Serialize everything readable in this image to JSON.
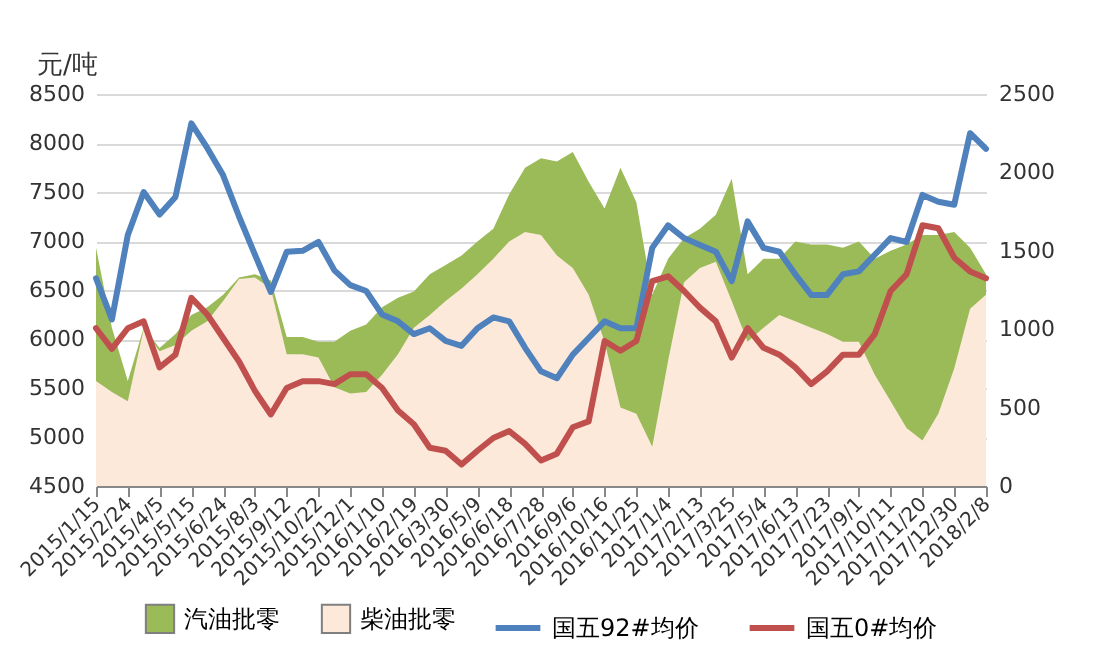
{
  "chart_data": {
    "type": "line",
    "ylabel": "元/吨",
    "x": [
      "2015-01-15",
      "2015-02-04",
      "2015-02-24",
      "2015-03-16",
      "2015-04-05",
      "2015-04-25",
      "2015-05-15",
      "2015-06-04",
      "2015-06-24",
      "2015-07-14",
      "2015-08-03",
      "2015-08-23",
      "2015-09-12",
      "2015-10-02",
      "2015-10-22",
      "2015-11-11",
      "2015-12-01",
      "2015-12-21",
      "2016-01-10",
      "2016-01-30",
      "2016-02-19",
      "2016-03-10",
      "2016-03-30",
      "2016-04-19",
      "2016-05-09",
      "2016-05-29",
      "2016-06-18",
      "2016-07-08",
      "2016-07-28",
      "2016-08-17",
      "2016-09-06",
      "2016-09-26",
      "2016-10-16",
      "2016-11-05",
      "2016-11-25",
      "2016-12-15",
      "2017-01-04",
      "2017-01-24",
      "2017-02-13",
      "2017-03-05",
      "2017-03-25",
      "2017-04-14",
      "2017-05-04",
      "2017-05-24",
      "2017-06-13",
      "2017-07-03",
      "2017-07-23",
      "2017-08-12",
      "2017-09-01",
      "2017-09-21",
      "2017-10-11",
      "2017-10-31",
      "2017-11-20",
      "2017-12-10",
      "2017-12-30",
      "2018-01-19",
      "2018-02-08"
    ],
    "series": [
      {
        "name": "汽油批零",
        "type": "area",
        "axis": "y2",
        "color": "#9bbb59",
        "values": [
          1520,
          1010,
          670,
          1010,
          880,
          970,
          1090,
          1140,
          1220,
          1330,
          1350,
          1310,
          950,
          950,
          920,
          920,
          990,
          1030,
          1140,
          1200,
          1240,
          1350,
          1410,
          1470,
          1560,
          1640,
          1860,
          2030,
          2090,
          2070,
          2130,
          1940,
          1770,
          2030,
          1810,
          1220,
          1450,
          1580,
          1640,
          1730,
          1960,
          1350,
          1450,
          1450,
          1560,
          1540,
          1540,
          1520,
          1560,
          1450,
          1500,
          1540,
          1600,
          1600,
          1620,
          1520,
          1350
        ]
      },
      {
        "name": "柴油批零",
        "type": "area",
        "axis": "y2",
        "color": "#fde9d9",
        "values": [
          670,
          600,
          540,
          1000,
          860,
          900,
          990,
          1050,
          1180,
          1320,
          1330,
          1260,
          840,
          840,
          820,
          630,
          590,
          600,
          710,
          840,
          1010,
          1090,
          1180,
          1260,
          1350,
          1450,
          1560,
          1620,
          1600,
          1470,
          1390,
          1220,
          920,
          500,
          460,
          250,
          800,
          1300,
          1390,
          1430,
          1180,
          920,
          1010,
          1090,
          1050,
          1010,
          970,
          920,
          920,
          710,
          540,
          370,
          290,
          460,
          750,
          1130,
          1220
        ]
      },
      {
        "name": "国五92#均价",
        "color": "#4f81bd",
        "values": [
          6620,
          6200,
          7060,
          7500,
          7270,
          7450,
          8200,
          7950,
          7670,
          7250,
          6860,
          6480,
          6890,
          6900,
          6990,
          6700,
          6550,
          6490,
          6250,
          6180,
          6050,
          6110,
          5980,
          5930,
          6110,
          6220,
          6180,
          5910,
          5670,
          5600,
          5840,
          6010,
          6180,
          6110,
          6110,
          6930,
          7160,
          7030,
          6960,
          6890,
          6590,
          7200,
          6930,
          6890,
          6660,
          6450,
          6450,
          6660,
          6690,
          6860,
          7030,
          6990,
          7470,
          7400,
          7370,
          8100,
          7940
        ]
      },
      {
        "name": "国五0#均价",
        "color": "#c0504d",
        "values": [
          6110,
          5900,
          6110,
          6180,
          5710,
          5840,
          6420,
          6250,
          6010,
          5770,
          5470,
          5230,
          5500,
          5570,
          5570,
          5540,
          5640,
          5640,
          5500,
          5270,
          5130,
          4890,
          4860,
          4720,
          4860,
          4990,
          5060,
          4930,
          4760,
          4830,
          5100,
          5160,
          5980,
          5880,
          5980,
          6590,
          6640,
          6490,
          6320,
          6180,
          5810,
          6110,
          5910,
          5840,
          5710,
          5540,
          5670,
          5840,
          5840,
          6050,
          6490,
          6660,
          7160,
          7130,
          6830,
          6690,
          6620
        ]
      }
    ],
    "xlim": [
      "2015-01-15",
      "2018-02-08"
    ],
    "xticks": [
      {
        "value": "2015-01-15",
        "label": "2015/1/15"
      },
      {
        "value": "2015-02-24",
        "label": "2015/2/24"
      },
      {
        "value": "2015-04-05",
        "label": "2015/4/5"
      },
      {
        "value": "2015-05-15",
        "label": "2015/5/15"
      },
      {
        "value": "2015-06-24",
        "label": "2015/6/24"
      },
      {
        "value": "2015-08-03",
        "label": "2015/8/3"
      },
      {
        "value": "2015-09-12",
        "label": "2015/9/12"
      },
      {
        "value": "2015-10-22",
        "label": "2015/10/22"
      },
      {
        "value": "2015-12-01",
        "label": "2015/12/1"
      },
      {
        "value": "2016-01-10",
        "label": "2016/1/10"
      },
      {
        "value": "2016-02-19",
        "label": "2016/2/19"
      },
      {
        "value": "2016-03-30",
        "label": "2016/3/30"
      },
      {
        "value": "2016-05-09",
        "label": "2016/5/9"
      },
      {
        "value": "2016-06-18",
        "label": "2016/6/18"
      },
      {
        "value": "2016-07-28",
        "label": "2016/7/28"
      },
      {
        "value": "2016-09-06",
        "label": "2016/9/6"
      },
      {
        "value": "2016-10-16",
        "label": "2016/10/16"
      },
      {
        "value": "2016-11-25",
        "label": "2016/11/25"
      },
      {
        "value": "2017-01-04",
        "label": "2017/1/4"
      },
      {
        "value": "2017-02-13",
        "label": "2017/2/13"
      },
      {
        "value": "2017-03-25",
        "label": "2017/3/25"
      },
      {
        "value": "2017-05-04",
        "label": "2017/5/4"
      },
      {
        "value": "2017-06-13",
        "label": "2017/6/13"
      },
      {
        "value": "2017-07-23",
        "label": "2017/7/23"
      },
      {
        "value": "2017-09-01",
        "label": "2017/9/1"
      },
      {
        "value": "2017-10-11",
        "label": "2017/10/11"
      },
      {
        "value": "2017-11-20",
        "label": "2017/11/20"
      },
      {
        "value": "2017-12-30",
        "label": "2017/12/30"
      },
      {
        "value": "2018-02-08",
        "label": "2018/2/8"
      }
    ],
    "ylim": [
      4500,
      8500
    ],
    "yticks": [
      4500,
      5000,
      5500,
      6000,
      6500,
      7000,
      7500,
      8000,
      8500
    ],
    "y2lim": [
      0,
      2500
    ],
    "y2ticks": [
      0,
      500,
      1000,
      1500,
      2000,
      2500
    ],
    "grid": "y",
    "legend": "bottom",
    "marker": "none",
    "line_style": "solid"
  }
}
